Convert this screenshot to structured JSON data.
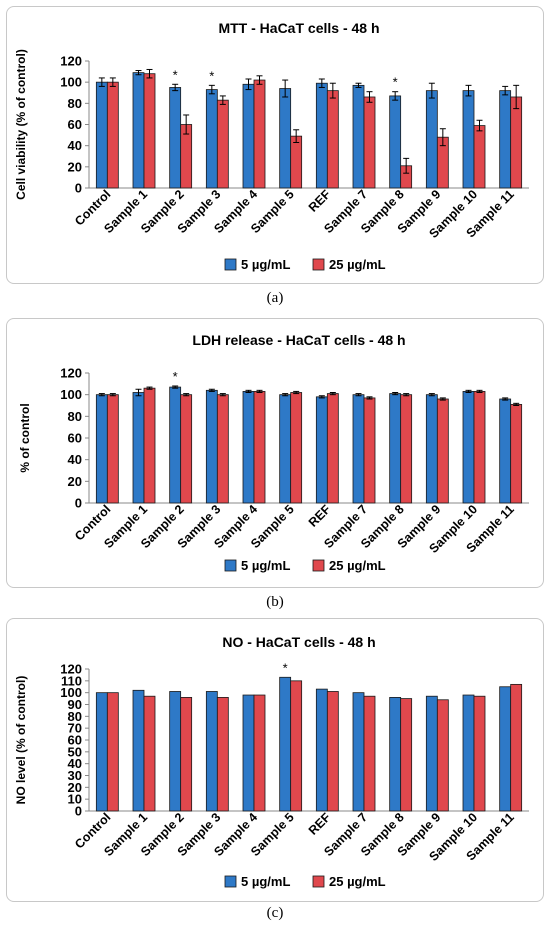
{
  "colors": {
    "series1": "#2e79c7",
    "series2": "#e0484d",
    "axis": "#888888",
    "text": "#000000",
    "error": "#000000"
  },
  "captions": [
    "(a)",
    "(b)",
    "(c)"
  ],
  "chart_data": [
    {
      "type": "bar",
      "title": "MTT - HaCaT cells - 48 h",
      "ylabel": "Cell viability (% of control)",
      "xlabel": "",
      "ylim": [
        0,
        120
      ],
      "yticks": [
        0,
        20,
        40,
        60,
        80,
        100,
        120
      ],
      "categories": [
        "Control",
        "Sample 1",
        "Sample 2",
        "Sample 3",
        "Sample 4",
        "Sample 5",
        "REF",
        "Sample 7",
        "Sample 8",
        "Sample 9",
        "Sample 10",
        "Sample 11"
      ],
      "series": [
        {
          "name": "5 µg/mL",
          "values": [
            100,
            109,
            95,
            93,
            98,
            94,
            99,
            97,
            87,
            92,
            92,
            92
          ],
          "errors": [
            4,
            2,
            3,
            4,
            5,
            8,
            4,
            2,
            4,
            7,
            5,
            4
          ]
        },
        {
          "name": "25 µg/mL",
          "values": [
            100,
            108,
            60,
            83,
            102,
            49,
            92,
            86,
            21,
            48,
            59,
            86
          ],
          "errors": [
            4,
            4,
            9,
            4,
            4,
            6,
            7,
            5,
            7,
            8,
            5,
            11
          ]
        }
      ],
      "significant": [
        2,
        3,
        8
      ],
      "significance_label": "*",
      "legend_position": "bottom",
      "grid": false
    },
    {
      "type": "bar",
      "title": "LDH release - HaCaT cells - 48 h",
      "ylabel": "% of control",
      "xlabel": "",
      "ylim": [
        0,
        120
      ],
      "yticks": [
        0,
        20,
        40,
        60,
        80,
        100,
        120
      ],
      "categories": [
        "Control",
        "Sample 1",
        "Sample 2",
        "Sample 3",
        "Sample 4",
        "Sample 5",
        "REF",
        "Sample 7",
        "Sample 8",
        "Sample 9",
        "Sample 10",
        "Sample 11"
      ],
      "series": [
        {
          "name": "5 µg/mL",
          "values": [
            100,
            102,
            107,
            104,
            103,
            100,
            98,
            100,
            101,
            100,
            103,
            96
          ],
          "errors": [
            1,
            3,
            1,
            1,
            1,
            1,
            1,
            1,
            1,
            1,
            1,
            1
          ]
        },
        {
          "name": "25 µg/mL",
          "values": [
            100,
            106,
            100,
            100,
            103,
            102,
            101,
            97,
            100,
            96,
            103,
            91
          ],
          "errors": [
            1,
            1,
            1,
            1,
            1,
            1,
            1,
            1,
            1,
            1,
            1,
            1
          ]
        }
      ],
      "significant": [
        2
      ],
      "significance_label": "*",
      "legend_position": "bottom",
      "grid": false
    },
    {
      "type": "bar",
      "title": "NO - HaCaT cells - 48 h",
      "ylabel": "NO level (% of control)",
      "xlabel": "",
      "ylim": [
        0,
        120
      ],
      "yticks": [
        0,
        10,
        20,
        30,
        40,
        50,
        60,
        70,
        80,
        90,
        100,
        110,
        120
      ],
      "categories": [
        "Control",
        "Sample 1",
        "Sample 2",
        "Sample 3",
        "Sample 4",
        "Sample 5",
        "REF",
        "Sample 7",
        "Sample 8",
        "Sample 9",
        "Sample 10",
        "Sample 11"
      ],
      "series": [
        {
          "name": "5 µg/mL",
          "values": [
            100,
            102,
            101,
            101,
            98,
            113,
            103,
            100,
            96,
            97,
            98,
            105
          ],
          "errors": []
        },
        {
          "name": "25 µg/mL",
          "values": [
            100,
            97,
            96,
            96,
            98,
            110,
            101,
            97,
            95,
            94,
            97,
            107
          ],
          "errors": []
        }
      ],
      "significant": [
        5
      ],
      "significance_label": "*",
      "legend_position": "bottom",
      "grid": false
    }
  ]
}
